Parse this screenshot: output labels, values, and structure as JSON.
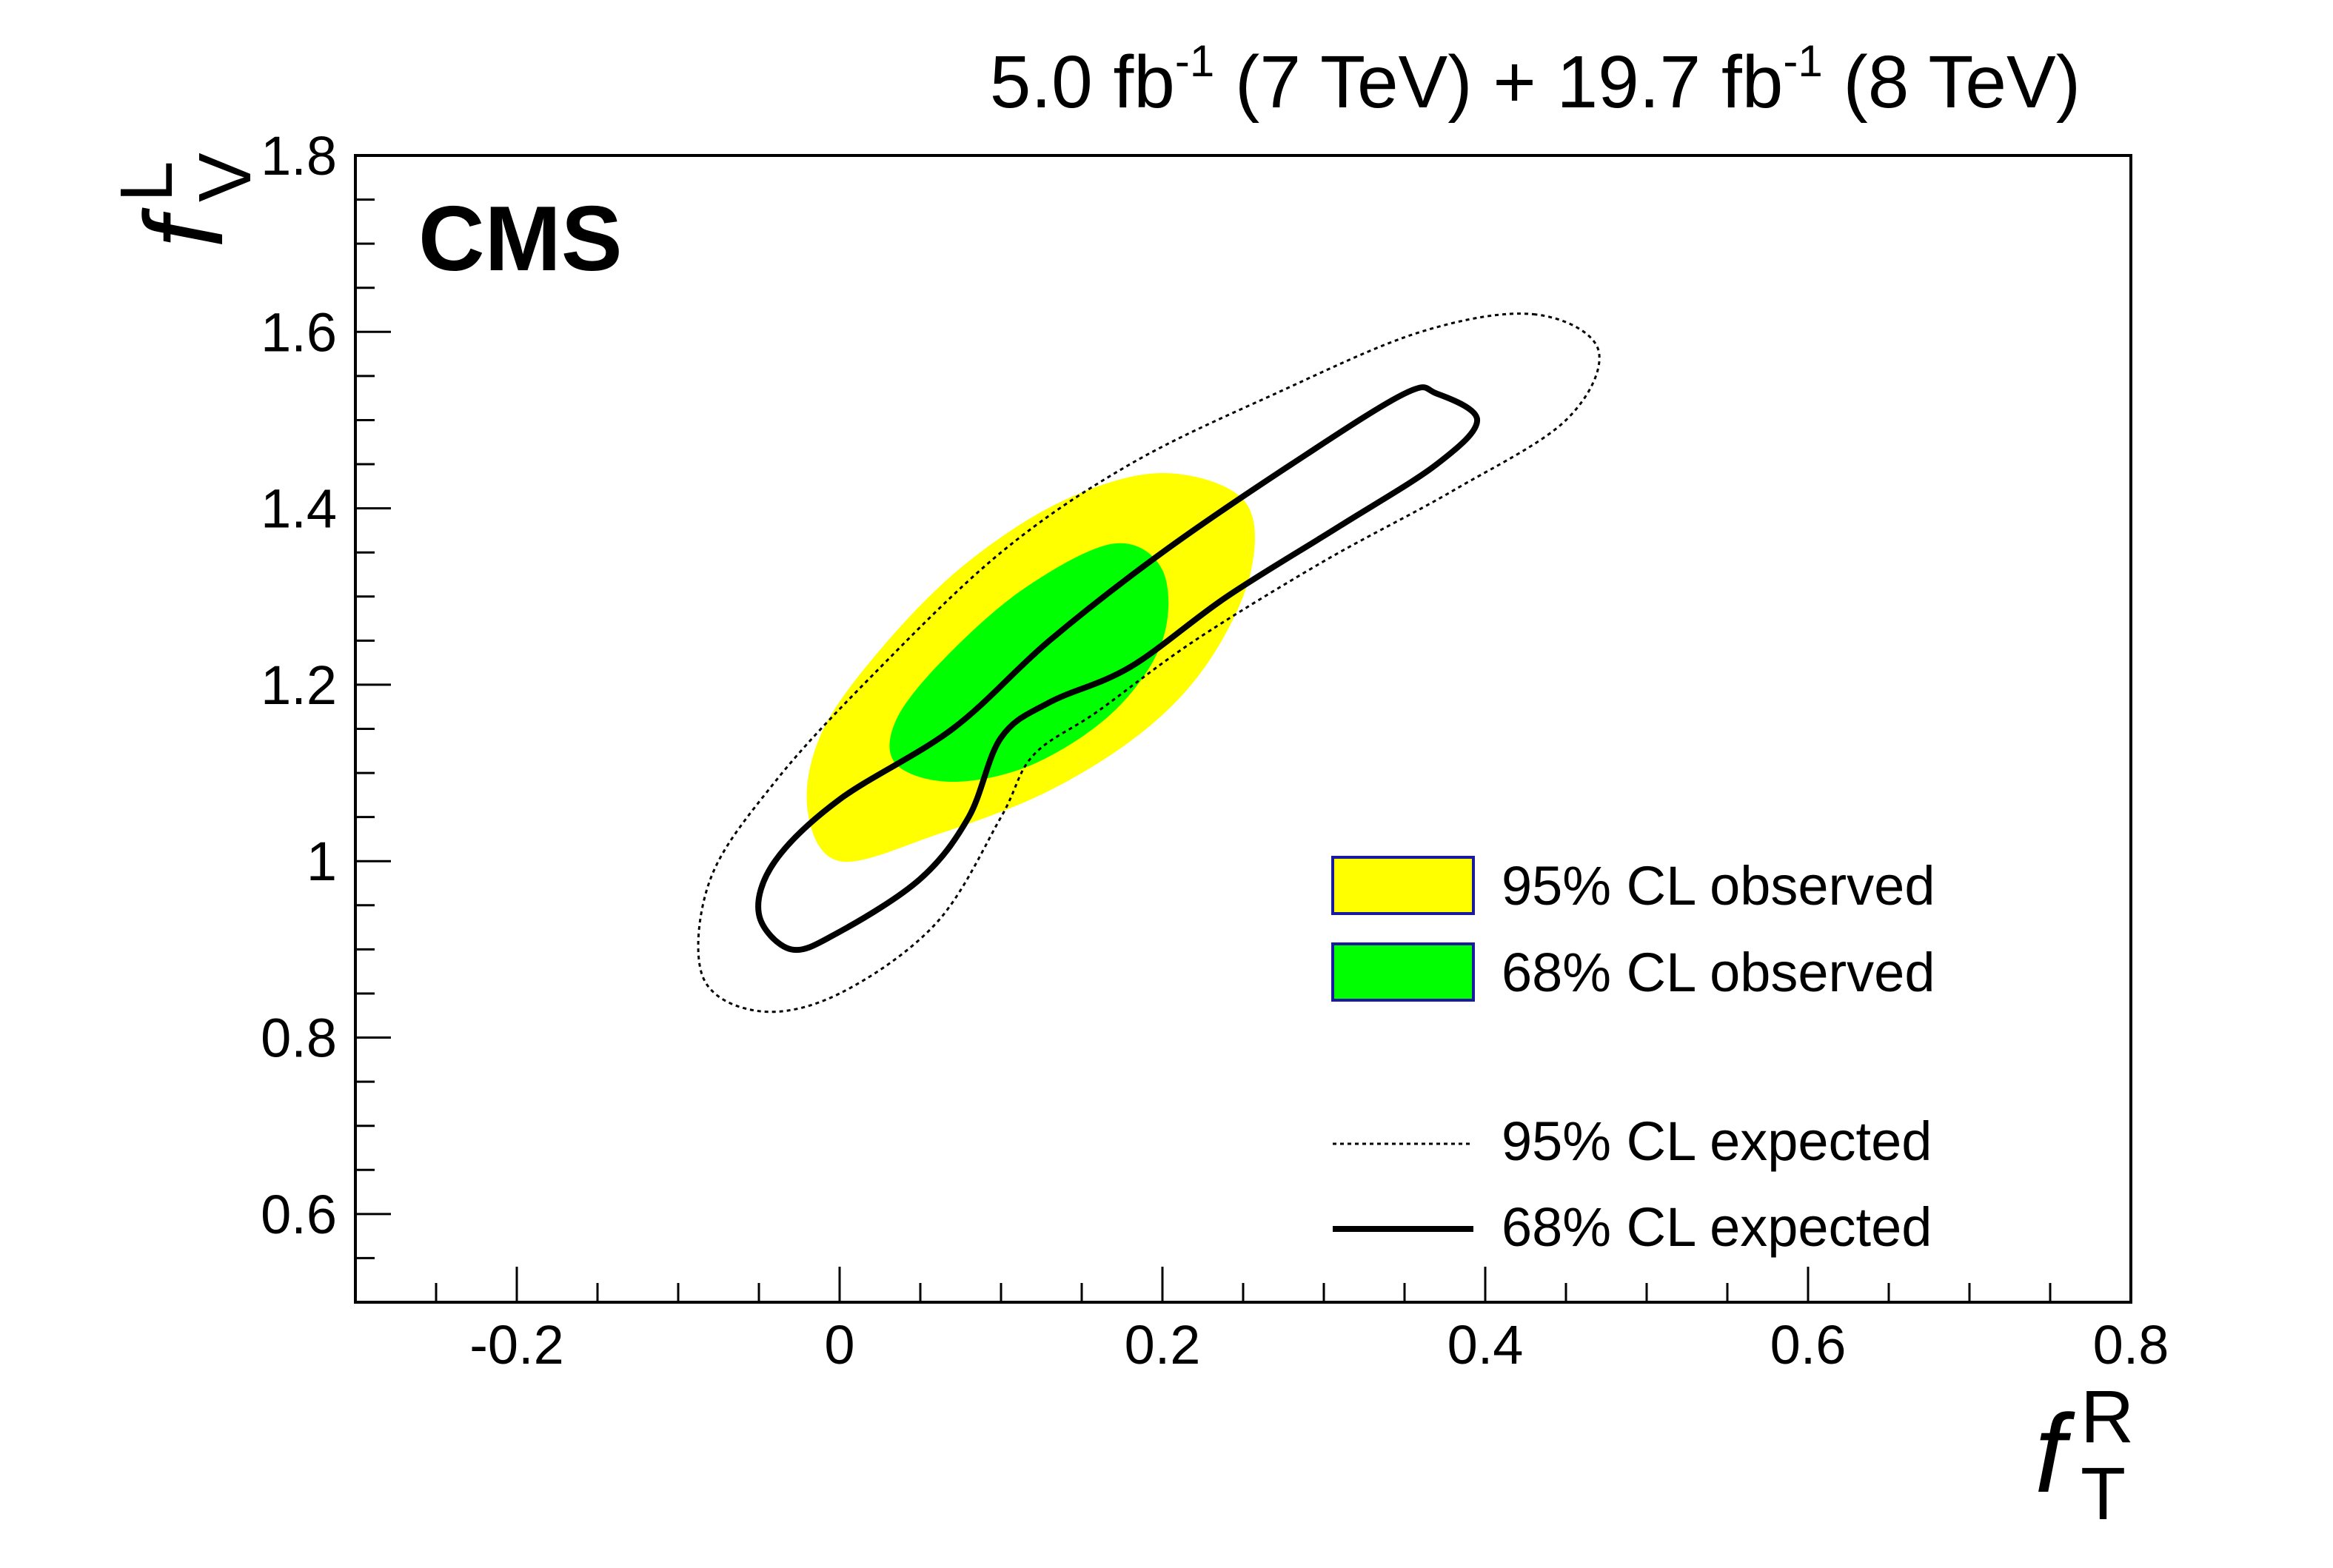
{
  "chart_data": {
    "type": "contour",
    "header": {
      "lumi1": "5.0 fb",
      "exp1": "-1",
      "energy1": " (7 TeV) + ",
      "lumi2": "19.7 fb",
      "exp2": "-1",
      "energy2": " (8 TeV)"
    },
    "experiment_label": "CMS",
    "xlabel": {
      "main": "f",
      "sup": "R",
      "sub": "T"
    },
    "ylabel": {
      "main": "f",
      "sup": "L",
      "sub": "V"
    },
    "xlim": [
      -0.3,
      0.8
    ],
    "ylim": [
      0.5,
      1.8
    ],
    "x_ticks": [
      {
        "v": -0.2,
        "label": "-0.2"
      },
      {
        "v": 0,
        "label": "0"
      },
      {
        "v": 0.2,
        "label": "0.2"
      },
      {
        "v": 0.4,
        "label": "0.4"
      },
      {
        "v": 0.6,
        "label": "0.6"
      },
      {
        "v": 0.8,
        "label": "0.8"
      }
    ],
    "y_ticks": [
      {
        "v": 0.6,
        "label": "0.6"
      },
      {
        "v": 0.8,
        "label": "0.8"
      },
      {
        "v": 1.0,
        "label": "1"
      },
      {
        "v": 1.2,
        "label": "1.2"
      },
      {
        "v": 1.4,
        "label": "1.4"
      },
      {
        "v": 1.6,
        "label": "1.6"
      },
      {
        "v": 1.8,
        "label": "1.8"
      }
    ],
    "series": [
      {
        "name": "95% CL observed",
        "style": "fill",
        "color": "#ffff00",
        "points": [
          [
            0.2,
            1.44
          ],
          [
            0.25,
            1.41
          ],
          [
            0.255,
            1.33
          ],
          [
            0.23,
            1.23
          ],
          [
            0.19,
            1.15
          ],
          [
            0.13,
            1.08
          ],
          [
            0.06,
            1.03
          ],
          [
            0.0,
            1.0
          ],
          [
            -0.02,
            1.06
          ],
          [
            -0.01,
            1.15
          ],
          [
            0.03,
            1.25
          ],
          [
            0.08,
            1.34
          ],
          [
            0.14,
            1.41
          ]
        ]
      },
      {
        "name": "68% CL observed",
        "style": "fill",
        "color": "#00ff00",
        "points": [
          [
            0.17,
            1.36
          ],
          [
            0.2,
            1.33
          ],
          [
            0.2,
            1.25
          ],
          [
            0.17,
            1.17
          ],
          [
            0.12,
            1.11
          ],
          [
            0.07,
            1.09
          ],
          [
            0.035,
            1.11
          ],
          [
            0.035,
            1.16
          ],
          [
            0.065,
            1.23
          ],
          [
            0.115,
            1.31
          ]
        ]
      },
      {
        "name": "95% CL expected",
        "style": "dotted",
        "color": "#000000",
        "points": [
          [
            0.43,
            1.62
          ],
          [
            0.47,
            1.58
          ],
          [
            0.45,
            1.5
          ],
          [
            0.38,
            1.42
          ],
          [
            0.3,
            1.34
          ],
          [
            0.22,
            1.25
          ],
          [
            0.16,
            1.17
          ],
          [
            0.12,
            1.12
          ],
          [
            0.1,
            1.05
          ],
          [
            0.06,
            0.93
          ],
          [
            0.0,
            0.85
          ],
          [
            -0.05,
            0.83
          ],
          [
            -0.085,
            0.87
          ],
          [
            -0.08,
            0.98
          ],
          [
            -0.04,
            1.09
          ],
          [
            0.02,
            1.21
          ],
          [
            0.1,
            1.35
          ],
          [
            0.18,
            1.45
          ],
          [
            0.27,
            1.53
          ],
          [
            0.36,
            1.6
          ]
        ]
      },
      {
        "name": "68% CL expected",
        "style": "solid",
        "color": "#000000",
        "points": [
          [
            0.37,
            1.53
          ],
          [
            0.395,
            1.5
          ],
          [
            0.37,
            1.45
          ],
          [
            0.31,
            1.38
          ],
          [
            0.24,
            1.3
          ],
          [
            0.18,
            1.22
          ],
          [
            0.13,
            1.18
          ],
          [
            0.1,
            1.14
          ],
          [
            0.08,
            1.05
          ],
          [
            0.05,
            0.98
          ],
          [
            0.0,
            0.92
          ],
          [
            -0.03,
            0.9
          ],
          [
            -0.05,
            0.94
          ],
          [
            -0.04,
            1.0
          ],
          [
            0.0,
            1.07
          ],
          [
            0.07,
            1.15
          ],
          [
            0.13,
            1.25
          ],
          [
            0.2,
            1.35
          ],
          [
            0.28,
            1.45
          ],
          [
            0.35,
            1.53
          ]
        ]
      }
    ],
    "legend": {
      "position": "bottom-right",
      "entries": [
        {
          "label": "95% CL observed",
          "style": "fill",
          "color": "#ffff00",
          "border": "#1a1aa0"
        },
        {
          "label": "68% CL observed",
          "style": "fill",
          "color": "#00ff00",
          "border": "#1a1aa0"
        },
        {
          "label": "95% CL expected",
          "style": "dotted",
          "color": "#000000"
        },
        {
          "label": "68% CL expected",
          "style": "solid",
          "color": "#000000"
        }
      ]
    }
  }
}
